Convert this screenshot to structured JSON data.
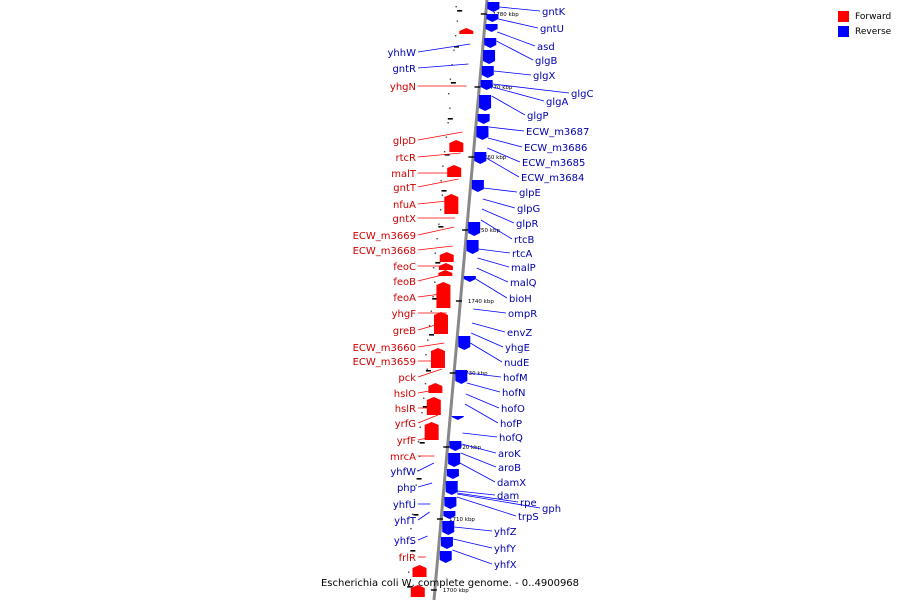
{
  "caption": "Escherichia coli W, complete genome. - 0..4900968",
  "legend": [
    {
      "label": "Forward",
      "color": "#ff0000"
    },
    {
      "label": "Reverse",
      "color": "#0000ff"
    }
  ],
  "colors": {
    "forward": "#ff0000",
    "reverse": "#0000ff",
    "backbone": "#888888",
    "label_forward": "#cc0000",
    "label_reverse": "#0000aa"
  },
  "scale_ticks": [
    "1780 kbp",
    "1770 kbp",
    "1760 kbp",
    "1750 kbp",
    "1740 kbp",
    "1730 kbp",
    "1720 kbp",
    "1710 kbp",
    "1700 kbp"
  ],
  "forward_genes": [
    "yhhW",
    "gntR",
    "yhgN",
    "glpD",
    "rtcR",
    "malT",
    "gntT",
    "nfuA",
    "gntX",
    "ECW_m3669",
    "ECW_m3668",
    "feoC",
    "feoB",
    "feoA",
    "yhgF",
    "greB",
    "ECW_m3660",
    "ECW_m3659",
    "pck",
    "hslO",
    "hslR",
    "yrfG",
    "yrfF",
    "mrcA",
    "yhfW",
    "php",
    "yhfU",
    "yhfT",
    "yhfS",
    "frlR"
  ],
  "reverse_genes": [
    "gntK",
    "gntU",
    "asd",
    "glgB",
    "glgX",
    "glgC",
    "glgA",
    "glgP",
    "ECW_m3687",
    "ECW_m3686",
    "ECW_m3685",
    "ECW_m3684",
    "glpE",
    "glpG",
    "glpR",
    "rtcB",
    "rtcA",
    "malP",
    "malQ",
    "bioH",
    "ompR",
    "envZ",
    "yhgE",
    "nudE",
    "hofM",
    "hofN",
    "hofO",
    "hofP",
    "hofQ",
    "aroK",
    "aroB",
    "damX",
    "dam",
    "rpe",
    "gph",
    "trpS",
    "yhfZ",
    "yhfY",
    "yhfX"
  ]
}
